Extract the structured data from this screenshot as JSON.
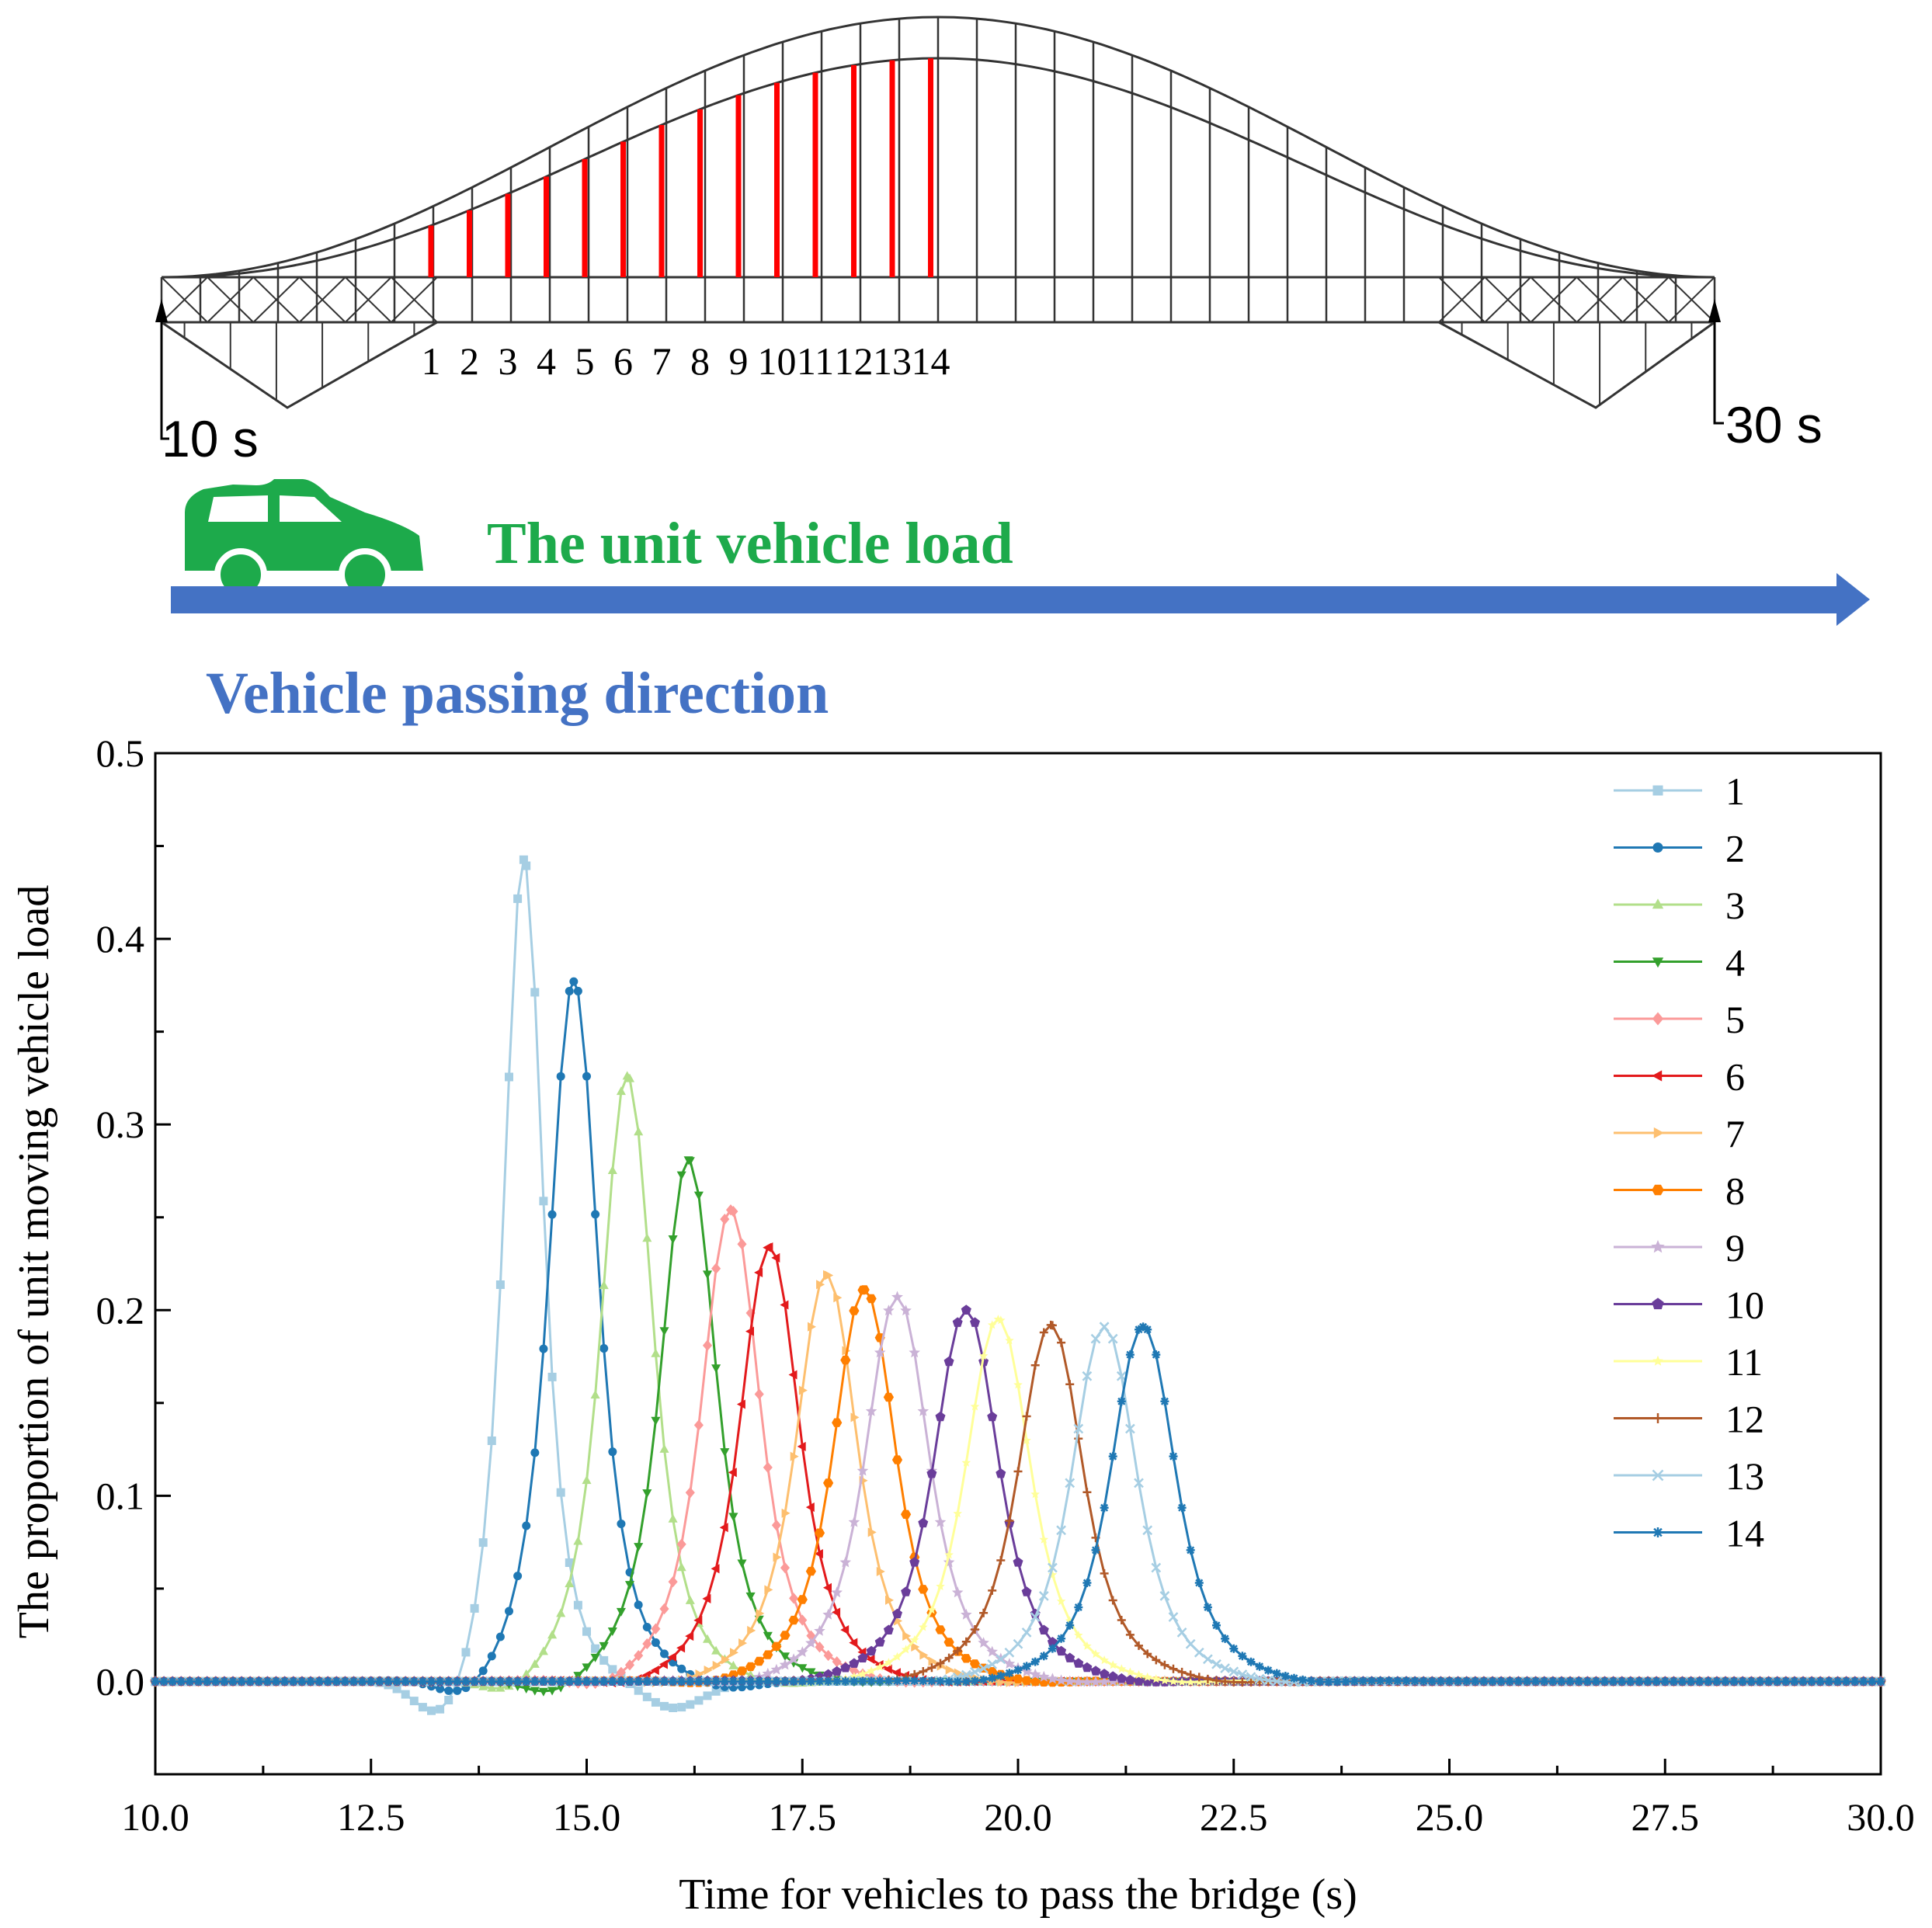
{
  "diagram": {
    "start_label": "10 s",
    "end_label": "30 s",
    "hanger_labels": [
      "1",
      "2",
      "3",
      "4",
      "5",
      "6",
      "7",
      "8",
      "9",
      "10",
      "11",
      "12",
      "13",
      "14"
    ],
    "vehicle_label": "The unit vehicle load",
    "direction_label": "Vehicle passing direction",
    "colors": {
      "vehicle": "#1daa4b",
      "arrow": "#4472c4",
      "hanger": "#ff0000",
      "structure": "#333333"
    }
  },
  "chart_data": {
    "type": "line",
    "title": "",
    "xlabel": "Time for vehicles to pass the bridge (s)",
    "ylabel": "The proportion of  unit moving vehicle load",
    "xlim": [
      10,
      30
    ],
    "ylim": [
      -0.05,
      0.5
    ],
    "xticks": [
      "10.0",
      "12.5",
      "15.0",
      "17.5",
      "20.0",
      "22.5",
      "25.0",
      "27.5",
      "30.0"
    ],
    "yticks": [
      "0.0",
      "0.1",
      "0.2",
      "0.3",
      "0.4",
      "0.5"
    ],
    "grid": false,
    "legend": "top-right",
    "series": [
      {
        "name": "1",
        "color": "#a6cee3",
        "marker": "square",
        "peak_x": 14.27,
        "peak_y": 0.443,
        "width": 0.3,
        "neg_x": 13.35,
        "neg_y": -0.026,
        "neg2_x": 16.0,
        "neg2_y": -0.015
      },
      {
        "name": "2",
        "color": "#1f78b4",
        "marker": "circle",
        "peak_x": 14.85,
        "peak_y": 0.377,
        "width": 0.38,
        "neg_x": 13.6,
        "neg_y": -0.012,
        "neg2_x": 16.6,
        "neg2_y": -0.005
      },
      {
        "name": "3",
        "color": "#b2df8a",
        "marker": "triangle-up",
        "peak_x": 15.47,
        "peak_y": 0.326,
        "width": 0.4,
        "neg_x": 14.1,
        "neg_y": -0.009,
        "neg2_x": 17.2,
        "neg2_y": -0.003
      },
      {
        "name": "4",
        "color": "#33a02c",
        "marker": "triangle-down",
        "peak_x": 16.18,
        "peak_y": 0.281,
        "width": 0.43,
        "neg_x": 14.6,
        "neg_y": -0.009,
        "neg2_x": 18.0,
        "neg2_y": -0.002
      },
      {
        "name": "5",
        "color": "#fb9a99",
        "marker": "diamond",
        "peak_x": 16.67,
        "peak_y": 0.254,
        "width": 0.45,
        "neg_x": 15.2,
        "neg_y": -0.006,
        "neg2_x": 18.6,
        "neg2_y": -0.002
      },
      {
        "name": "6",
        "color": "#e31a1c",
        "marker": "triangle-left",
        "peak_x": 17.12,
        "peak_y": 0.234,
        "width": 0.46,
        "neg_x": 15.5,
        "neg_y": -0.004,
        "neg2_x": 19.0,
        "neg2_y": -0.002
      },
      {
        "name": "7",
        "color": "#fdbf6f",
        "marker": "triangle-right",
        "peak_x": 17.78,
        "peak_y": 0.219,
        "width": 0.47,
        "neg_x": 16.0,
        "neg_y": -0.003,
        "neg2_x": 19.8,
        "neg2_y": -0.002
      },
      {
        "name": "8",
        "color": "#ff7f00",
        "marker": "hexagon",
        "peak_x": 18.22,
        "peak_y": 0.211,
        "width": 0.48,
        "neg_x": 16.4,
        "neg_y": -0.003,
        "neg2_x": 20.2,
        "neg2_y": -0.002
      },
      {
        "name": "9",
        "color": "#cab2d6",
        "marker": "star",
        "peak_x": 18.6,
        "peak_y": 0.207,
        "width": 0.49,
        "neg_x": 16.8,
        "neg_y": -0.003,
        "neg2_x": 20.6,
        "neg2_y": -0.002
      },
      {
        "name": "10",
        "color": "#6a3d9a",
        "marker": "pentagon",
        "peak_x": 19.4,
        "peak_y": 0.2,
        "width": 0.5,
        "neg_x": 17.5,
        "neg_y": -0.002,
        "neg2_x": 21.4,
        "neg2_y": -0.002
      },
      {
        "name": "11",
        "color": "#ffff99",
        "marker": "star-small",
        "peak_x": 19.77,
        "peak_y": 0.195,
        "width": 0.5,
        "neg_x": 17.9,
        "neg_y": -0.002,
        "neg2_x": 21.8,
        "neg2_y": -0.002
      },
      {
        "name": "12",
        "color": "#b15928",
        "marker": "plus",
        "peak_x": 20.38,
        "peak_y": 0.192,
        "width": 0.5,
        "neg_x": 18.5,
        "neg_y": -0.002,
        "neg2_x": 22.4,
        "neg2_y": -0.002
      },
      {
        "name": "13",
        "color": "#a6cee3",
        "marker": "x",
        "peak_x": 21.0,
        "peak_y": 0.191,
        "width": 0.5,
        "neg_x": 19.1,
        "neg_y": -0.002,
        "neg2_x": 23.0,
        "neg2_y": -0.002
      },
      {
        "name": "14",
        "color": "#1f78b4",
        "marker": "asterisk",
        "peak_x": 21.45,
        "peak_y": 0.191,
        "width": 0.5,
        "neg_x": 19.5,
        "neg_y": -0.002,
        "neg2_x": 23.4,
        "neg2_y": -0.002
      }
    ]
  }
}
